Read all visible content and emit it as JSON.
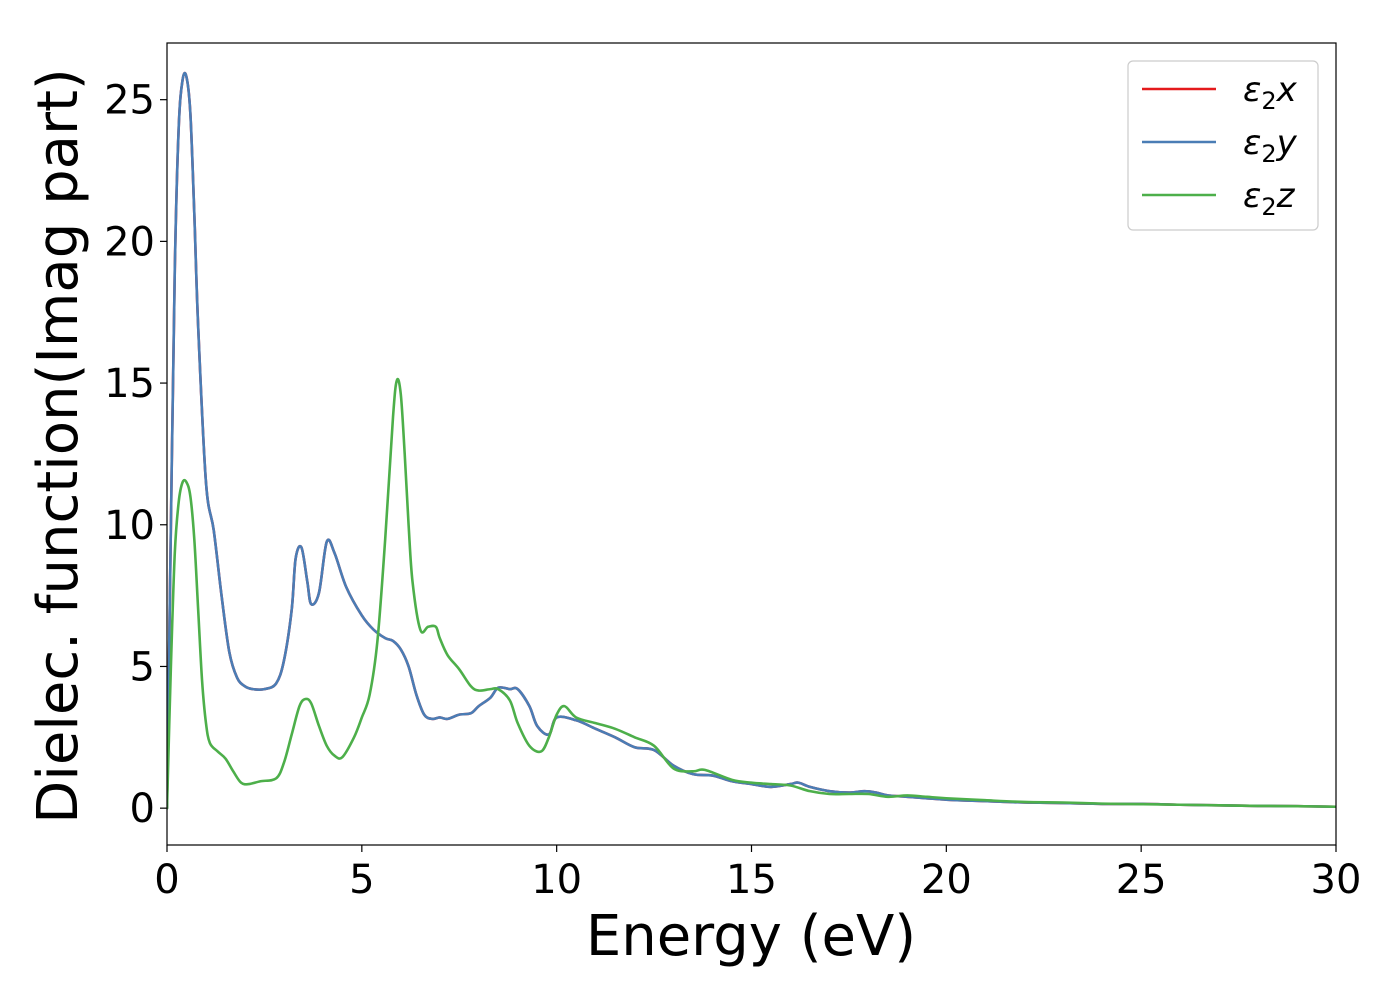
{
  "chart_data": {
    "type": "line",
    "title": "",
    "xlabel": "Energy (eV)",
    "ylabel": "Dielec. function(Imag part)",
    "xlim": [
      0,
      30
    ],
    "ylim": [
      -1.3,
      27
    ],
    "xticks": [
      0,
      5,
      10,
      15,
      20,
      25,
      30
    ],
    "yticks": [
      0,
      5,
      10,
      15,
      20,
      25
    ],
    "grid": false,
    "legend_position": "top-right",
    "series": [
      {
        "name": "ε₂x",
        "legend_base": "ε",
        "legend_sub": "2",
        "legend_suffix": "x",
        "color": "#e41a1c",
        "x": [
          0,
          0.1,
          0.2,
          0.3,
          0.4,
          0.5,
          0.6,
          0.7,
          0.8,
          1.0,
          1.2,
          1.4,
          1.6,
          1.8,
          2.0,
          2.2,
          2.5,
          2.8,
          3.0,
          3.2,
          3.3,
          3.45,
          3.6,
          3.7,
          3.9,
          4.1,
          4.3,
          4.6,
          5.0,
          5.3,
          5.6,
          5.8,
          6.0,
          6.2,
          6.4,
          6.6,
          6.8,
          7.0,
          7.2,
          7.5,
          7.8,
          8.0,
          8.3,
          8.5,
          8.8,
          9.0,
          9.3,
          9.5,
          9.8,
          10.0,
          10.5,
          11.0,
          11.5,
          12.0,
          12.5,
          13.0,
          13.5,
          14.0,
          14.5,
          15.0,
          15.5,
          16.0,
          16.2,
          16.5,
          17.0,
          17.5,
          17.9,
          18.2,
          18.5,
          19.0,
          20.0,
          21.0,
          22.0,
          23.0,
          24.0,
          25.0,
          26.0,
          27.0,
          28.0,
          29.0,
          30.0
        ],
        "y": [
          0,
          10,
          19,
          24,
          25.7,
          25.8,
          24.5,
          21,
          17,
          11.5,
          9.8,
          7.5,
          5.5,
          4.6,
          4.3,
          4.2,
          4.2,
          4.4,
          5.2,
          7.0,
          8.8,
          9.2,
          8.0,
          7.2,
          7.6,
          9.4,
          9.0,
          7.8,
          6.8,
          6.3,
          6.0,
          5.9,
          5.6,
          5.0,
          4.0,
          3.3,
          3.15,
          3.2,
          3.15,
          3.3,
          3.35,
          3.6,
          3.9,
          4.25,
          4.2,
          4.2,
          3.6,
          2.9,
          2.6,
          3.2,
          3.1,
          2.8,
          2.5,
          2.15,
          2.05,
          1.5,
          1.2,
          1.15,
          0.95,
          0.85,
          0.75,
          0.85,
          0.9,
          0.75,
          0.6,
          0.55,
          0.6,
          0.55,
          0.45,
          0.4,
          0.3,
          0.25,
          0.2,
          0.18,
          0.15,
          0.15,
          0.12,
          0.1,
          0.08,
          0.07,
          0.05
        ]
      },
      {
        "name": "ε₂y",
        "legend_base": "ε",
        "legend_sub": "2",
        "legend_suffix": "y",
        "color": "#4a7db5",
        "x": [
          0,
          0.1,
          0.2,
          0.3,
          0.4,
          0.5,
          0.6,
          0.7,
          0.8,
          1.0,
          1.2,
          1.4,
          1.6,
          1.8,
          2.0,
          2.2,
          2.5,
          2.8,
          3.0,
          3.2,
          3.3,
          3.45,
          3.6,
          3.7,
          3.9,
          4.1,
          4.3,
          4.6,
          5.0,
          5.3,
          5.6,
          5.8,
          6.0,
          6.2,
          6.4,
          6.6,
          6.8,
          7.0,
          7.2,
          7.5,
          7.8,
          8.0,
          8.3,
          8.5,
          8.8,
          9.0,
          9.3,
          9.5,
          9.8,
          10.0,
          10.5,
          11.0,
          11.5,
          12.0,
          12.5,
          13.0,
          13.5,
          14.0,
          14.5,
          15.0,
          15.5,
          16.0,
          16.2,
          16.5,
          17.0,
          17.5,
          17.9,
          18.2,
          18.5,
          19.0,
          20.0,
          21.0,
          22.0,
          23.0,
          24.0,
          25.0,
          26.0,
          27.0,
          28.0,
          29.0,
          30.0
        ],
        "y": [
          0,
          10,
          19,
          24,
          25.7,
          25.8,
          24.5,
          21,
          17,
          11.5,
          9.8,
          7.5,
          5.5,
          4.6,
          4.3,
          4.2,
          4.2,
          4.4,
          5.2,
          7.0,
          8.8,
          9.2,
          8.0,
          7.2,
          7.6,
          9.4,
          9.0,
          7.8,
          6.8,
          6.3,
          6.0,
          5.9,
          5.6,
          5.0,
          4.0,
          3.3,
          3.15,
          3.2,
          3.15,
          3.3,
          3.35,
          3.6,
          3.9,
          4.25,
          4.2,
          4.2,
          3.6,
          2.9,
          2.6,
          3.2,
          3.1,
          2.8,
          2.5,
          2.15,
          2.05,
          1.5,
          1.2,
          1.15,
          0.95,
          0.85,
          0.75,
          0.85,
          0.9,
          0.75,
          0.6,
          0.55,
          0.6,
          0.55,
          0.45,
          0.4,
          0.3,
          0.25,
          0.2,
          0.18,
          0.15,
          0.15,
          0.12,
          0.1,
          0.08,
          0.07,
          0.05
        ]
      },
      {
        "name": "ε₂z",
        "legend_base": "ε",
        "legend_sub": "2",
        "legend_suffix": "z",
        "color": "#4daf4a",
        "x": [
          0,
          0.1,
          0.2,
          0.3,
          0.4,
          0.5,
          0.6,
          0.7,
          0.8,
          0.9,
          1.0,
          1.1,
          1.3,
          1.5,
          1.7,
          1.9,
          2.1,
          2.4,
          2.8,
          3.0,
          3.2,
          3.4,
          3.55,
          3.7,
          3.9,
          4.1,
          4.3,
          4.5,
          4.8,
          5.0,
          5.2,
          5.4,
          5.6,
          5.8,
          5.9,
          6.0,
          6.1,
          6.2,
          6.3,
          6.5,
          6.7,
          6.9,
          7.0,
          7.2,
          7.5,
          7.8,
          8.0,
          8.3,
          8.5,
          8.8,
          9.0,
          9.3,
          9.6,
          9.8,
          10.0,
          10.2,
          10.5,
          11.0,
          11.5,
          12.0,
          12.5,
          13.0,
          13.5,
          13.8,
          14.5,
          15.0,
          15.5,
          16.0,
          16.5,
          17.0,
          17.5,
          18.0,
          18.5,
          19.0,
          19.5,
          20.0,
          21.0,
          22.0,
          23.0,
          24.0,
          25.0,
          26.0,
          27.0,
          28.0,
          29.0,
          30.0
        ],
        "y": [
          0,
          5,
          9,
          10.8,
          11.5,
          11.5,
          11.0,
          9.5,
          7.0,
          4.5,
          3.0,
          2.3,
          2.0,
          1.75,
          1.3,
          0.9,
          0.85,
          0.95,
          1.05,
          1.6,
          2.6,
          3.6,
          3.85,
          3.7,
          2.9,
          2.2,
          1.85,
          1.8,
          2.5,
          3.2,
          4.0,
          5.9,
          9.5,
          13.8,
          15.1,
          14.6,
          12.5,
          10.0,
          8.0,
          6.3,
          6.4,
          6.4,
          6.0,
          5.4,
          4.9,
          4.3,
          4.15,
          4.2,
          4.2,
          3.8,
          3.0,
          2.2,
          2.0,
          2.5,
          3.3,
          3.6,
          3.2,
          3.0,
          2.8,
          2.5,
          2.2,
          1.4,
          1.3,
          1.35,
          1.0,
          0.9,
          0.85,
          0.8,
          0.6,
          0.5,
          0.5,
          0.5,
          0.4,
          0.45,
          0.4,
          0.35,
          0.28,
          0.22,
          0.2,
          0.16,
          0.14,
          0.12,
          0.1,
          0.08,
          0.07,
          0.05
        ]
      }
    ]
  }
}
